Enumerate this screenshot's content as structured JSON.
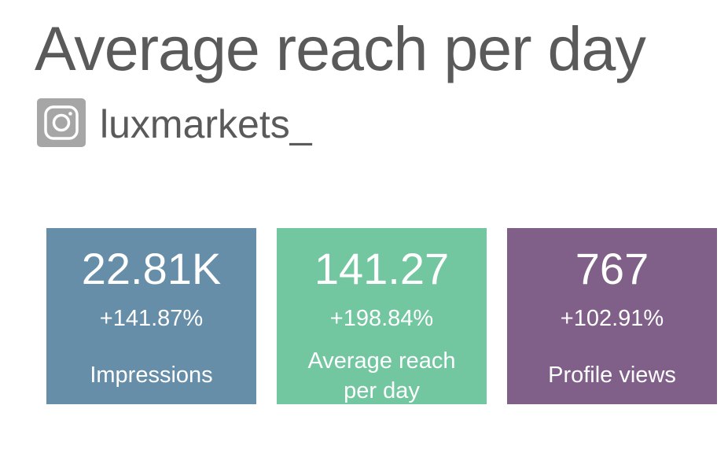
{
  "header": {
    "title": "Average reach per day",
    "account": "luxmarkets_"
  },
  "cards": [
    {
      "value": "22.81K",
      "change": "+141.87%",
      "label": "Impressions"
    },
    {
      "value": "141.27",
      "change": "+198.84%",
      "label": "Average reach per day"
    },
    {
      "value": "767",
      "change": "+102.91%",
      "label": "Profile views"
    }
  ]
}
